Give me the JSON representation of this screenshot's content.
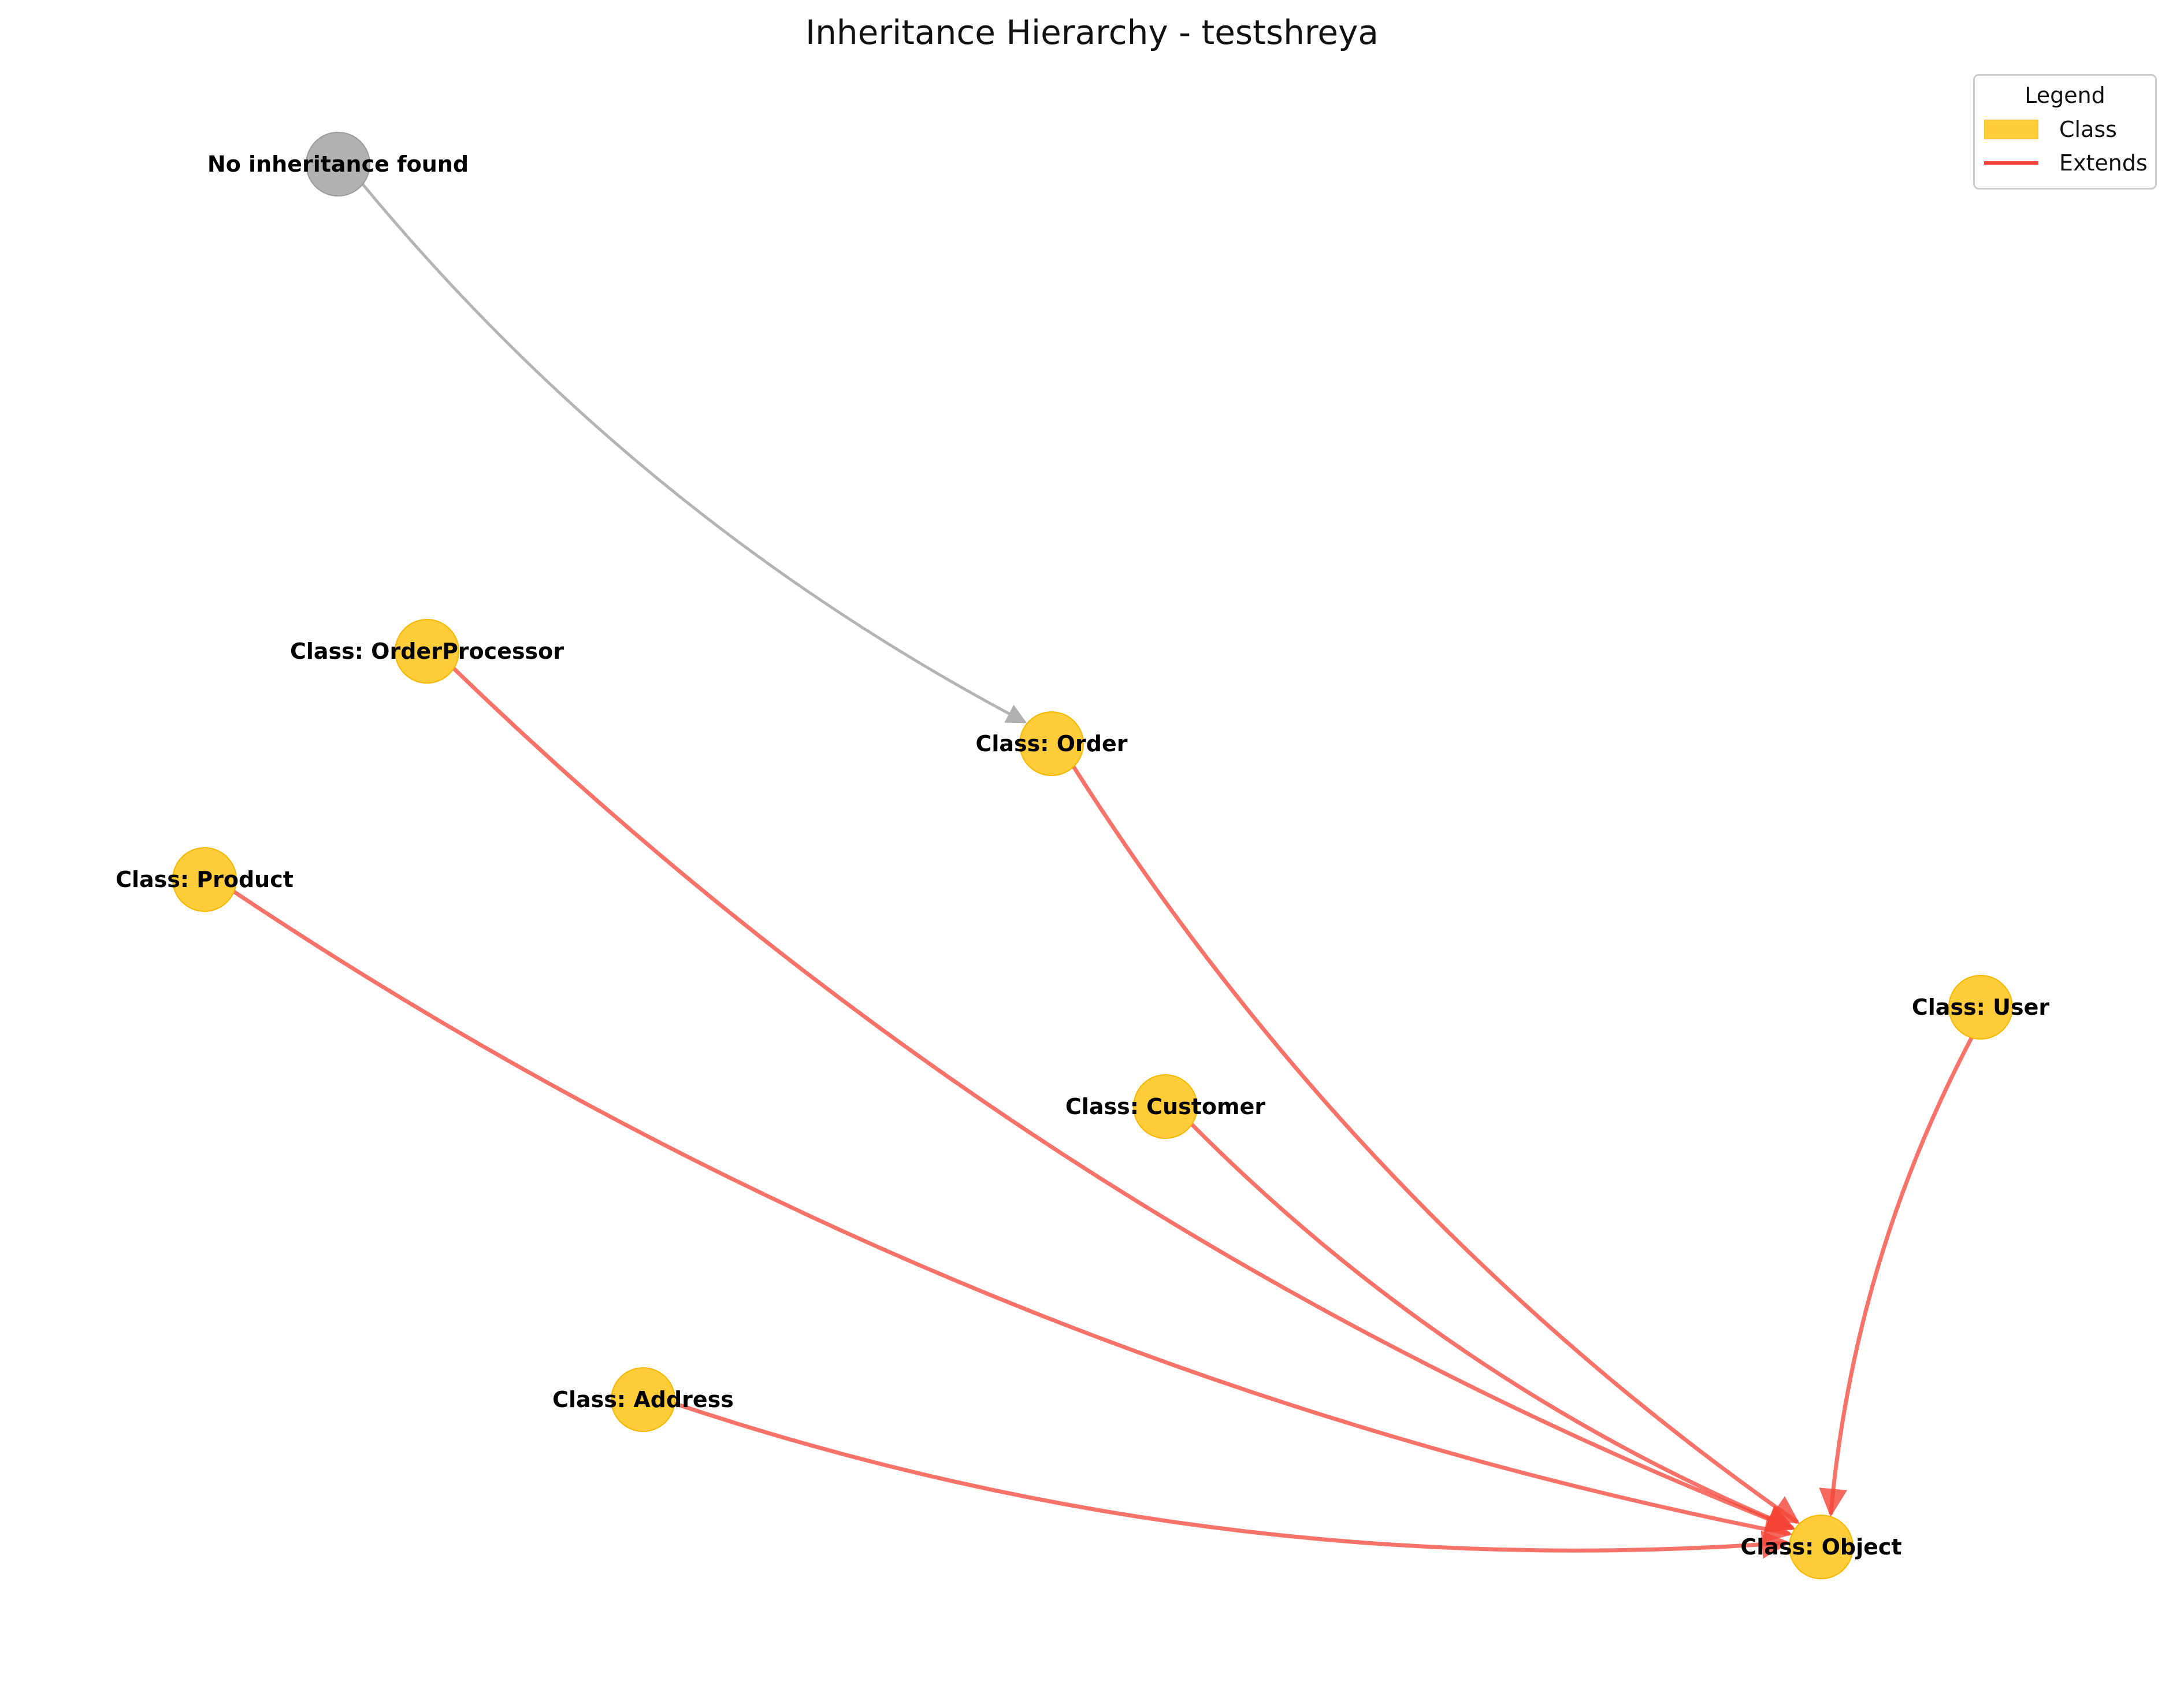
{
  "title": "Inheritance Hierarchy - testshreya",
  "colors": {
    "class_node": "#ffc107",
    "class_node_border": "#f5b700",
    "placeholder_node": "#a9a9a9",
    "extends_edge": "#f44336",
    "other_edge": "#b0b0b0"
  },
  "nodes": [
    {
      "id": "none",
      "label": "No inheritance found",
      "kind": "placeholder"
    },
    {
      "id": "orderprocessor",
      "label": "Class: OrderProcessor",
      "kind": "class"
    },
    {
      "id": "order",
      "label": "Class: Order",
      "kind": "class"
    },
    {
      "id": "product",
      "label": "Class: Product",
      "kind": "class"
    },
    {
      "id": "user",
      "label": "Class: User",
      "kind": "class"
    },
    {
      "id": "customer",
      "label": "Class: Customer",
      "kind": "class"
    },
    {
      "id": "address",
      "label": "Class: Address",
      "kind": "class"
    },
    {
      "id": "object",
      "label": "Class: Object",
      "kind": "class"
    }
  ],
  "edges": [
    {
      "from": "none",
      "to": "order",
      "type": "other"
    },
    {
      "from": "orderprocessor",
      "to": "object",
      "type": "extends"
    },
    {
      "from": "order",
      "to": "object",
      "type": "extends"
    },
    {
      "from": "product",
      "to": "object",
      "type": "extends"
    },
    {
      "from": "customer",
      "to": "object",
      "type": "extends"
    },
    {
      "from": "user",
      "to": "object",
      "type": "extends"
    },
    {
      "from": "address",
      "to": "object",
      "type": "extends"
    }
  ],
  "legend": {
    "title": "Legend",
    "items": [
      {
        "label": "Class",
        "kind": "patch"
      },
      {
        "label": "Extends",
        "kind": "line"
      }
    ]
  }
}
